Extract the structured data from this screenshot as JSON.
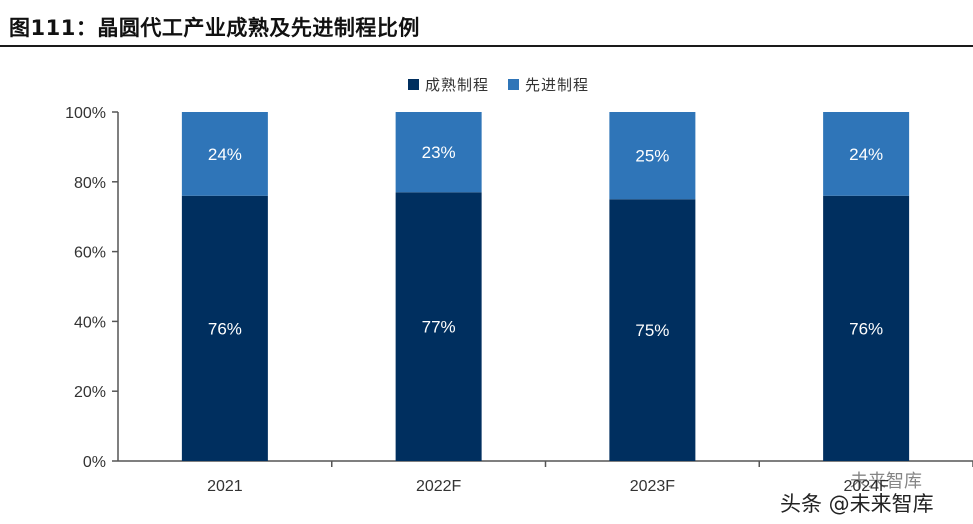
{
  "header": {
    "title": "图111：晶圆代工产业成熟及先进制程比例"
  },
  "watermark": {
    "top_text": "未来智库",
    "bottom_text": "头条 @未来智库"
  },
  "chart_data": {
    "type": "bar",
    "stacked": true,
    "title": "",
    "xlabel": "",
    "ylabel": "",
    "categories": [
      "2021",
      "2022F",
      "2023F",
      "2024F"
    ],
    "series": [
      {
        "name": "成熟制程",
        "values": [
          76,
          77,
          75,
          76
        ],
        "labels": [
          "76%",
          "77%",
          "75%",
          "76%"
        ],
        "color": "#002f5f"
      },
      {
        "name": "先进制程",
        "values": [
          24,
          23,
          25,
          24
        ],
        "labels": [
          "24%",
          "23%",
          "25%",
          "24%"
        ],
        "color": "#2f75b8"
      }
    ],
    "ylim": [
      0,
      100
    ],
    "yticks": [
      "0%",
      "20%",
      "40%",
      "60%",
      "80%",
      "100%"
    ],
    "legend_position": "top-center",
    "grid": false
  }
}
